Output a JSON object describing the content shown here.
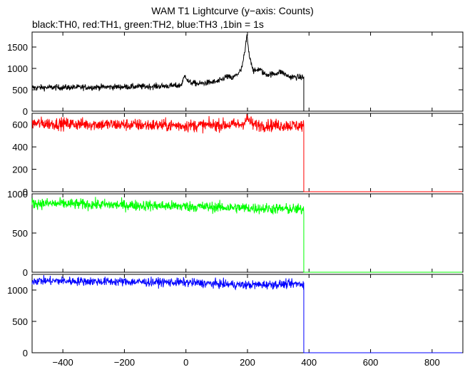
{
  "title": "WAM T1 Lightcurve (y−axis: Counts)",
  "subtitle": "black:TH0, red:TH1, green:TH2, blue:TH3 ,1bin = 1s",
  "chart_data": {
    "type": "line",
    "xlim": [
      -500,
      900
    ],
    "x_ticks": [
      -400,
      -200,
      0,
      200,
      400,
      600,
      800
    ],
    "x_tick_labels": [
      "−400",
      "−200",
      "0",
      "200",
      "400",
      "600",
      "800"
    ],
    "grid": false,
    "legend": "none (series described in subtitle)",
    "data_end_x": 383,
    "series": [
      {
        "name": "TH0",
        "color": "#000000",
        "ylim": [
          0,
          1850
        ],
        "y_ticks": [
          0,
          500,
          1000,
          1500
        ],
        "y_tick_labels": [
          "0",
          "500",
          "1000",
          "1500"
        ],
        "baseline": [
          [
            -500,
            550
          ],
          [
            -300,
            560
          ],
          [
            -100,
            580
          ],
          [
            -20,
            600
          ],
          [
            0,
            690
          ],
          [
            40,
            640
          ],
          [
            100,
            690
          ],
          [
            150,
            750
          ],
          [
            180,
            960
          ],
          [
            192,
            1400
          ],
          [
            198,
            1780
          ],
          [
            205,
            1350
          ],
          [
            220,
            920
          ],
          [
            260,
            860
          ],
          [
            300,
            870
          ],
          [
            340,
            800
          ],
          [
            383,
            790
          ]
        ],
        "noise": 35,
        "features": [
          [
            -3,
            5,
            150
          ],
          [
            132,
            10,
            80
          ],
          [
            238,
            8,
            90
          ],
          [
            310,
            10,
            60
          ]
        ],
        "after_level": 0
      },
      {
        "name": "TH1",
        "color": "#ff0000",
        "ylim": [
          0,
          700
        ],
        "y_ticks": [
          0,
          200,
          400,
          600
        ],
        "y_tick_labels": [
          "0",
          "200",
          "400",
          "600"
        ],
        "baseline": [
          [
            -500,
            610
          ],
          [
            0,
            590
          ],
          [
            180,
            600
          ],
          [
            200,
            650
          ],
          [
            220,
            595
          ],
          [
            383,
            590
          ]
        ],
        "noise": 28,
        "features": [],
        "after_level": 0
      },
      {
        "name": "TH2",
        "color": "#00ff00",
        "ylim": [
          0,
          1000
        ],
        "y_ticks": [
          0,
          500,
          1000
        ],
        "y_tick_labels": [
          "0",
          "500",
          "1000"
        ],
        "baseline": [
          [
            -500,
            880
          ],
          [
            0,
            840
          ],
          [
            383,
            800
          ]
        ],
        "noise": 35,
        "features": [],
        "after_level": 0
      },
      {
        "name": "TH3",
        "color": "#0000ff",
        "ylim": [
          0,
          1250
        ],
        "y_ticks": [
          0,
          500,
          1000
        ],
        "y_tick_labels": [
          "0",
          "500",
          "1000"
        ],
        "baseline": [
          [
            -500,
            1150
          ],
          [
            0,
            1120
          ],
          [
            190,
            1080
          ],
          [
            383,
            1100
          ]
        ],
        "noise": 35,
        "features": [],
        "after_level": 0
      }
    ]
  }
}
